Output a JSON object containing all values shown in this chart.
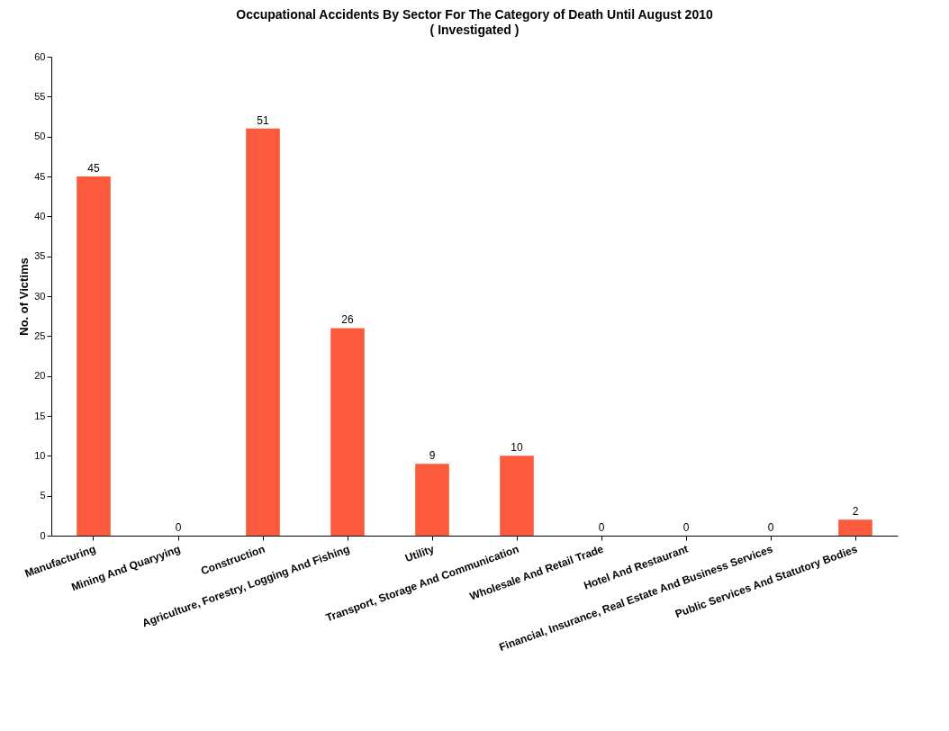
{
  "chart_data": {
    "type": "bar",
    "title": "Occupational Accidents By Sector For The Category of Death Until August 2010",
    "subtitle": "( Investigated )",
    "ylabel": "No. of Victims",
    "categories": [
      "Manufacturing",
      "Mining And Quaryying",
      "Construction",
      "Agriculture, Forestry, Logging And Fishing",
      "Utility",
      "Transport, Storage And Communication",
      "Wholesale And Retail Trade",
      "Hotel And Restaurant",
      "Financial, Insurance, Real Estate And Business Services",
      "Public Services And Statutory Bodies"
    ],
    "values": [
      45,
      0,
      51,
      26,
      9,
      10,
      0,
      0,
      0,
      2
    ],
    "color": "#fb5a3c",
    "ylim": [
      0,
      60
    ],
    "yticks": [
      0,
      5,
      10,
      15,
      20,
      25,
      30,
      35,
      40,
      45,
      50,
      55,
      60
    ],
    "data_labels": true,
    "grid": false
  }
}
